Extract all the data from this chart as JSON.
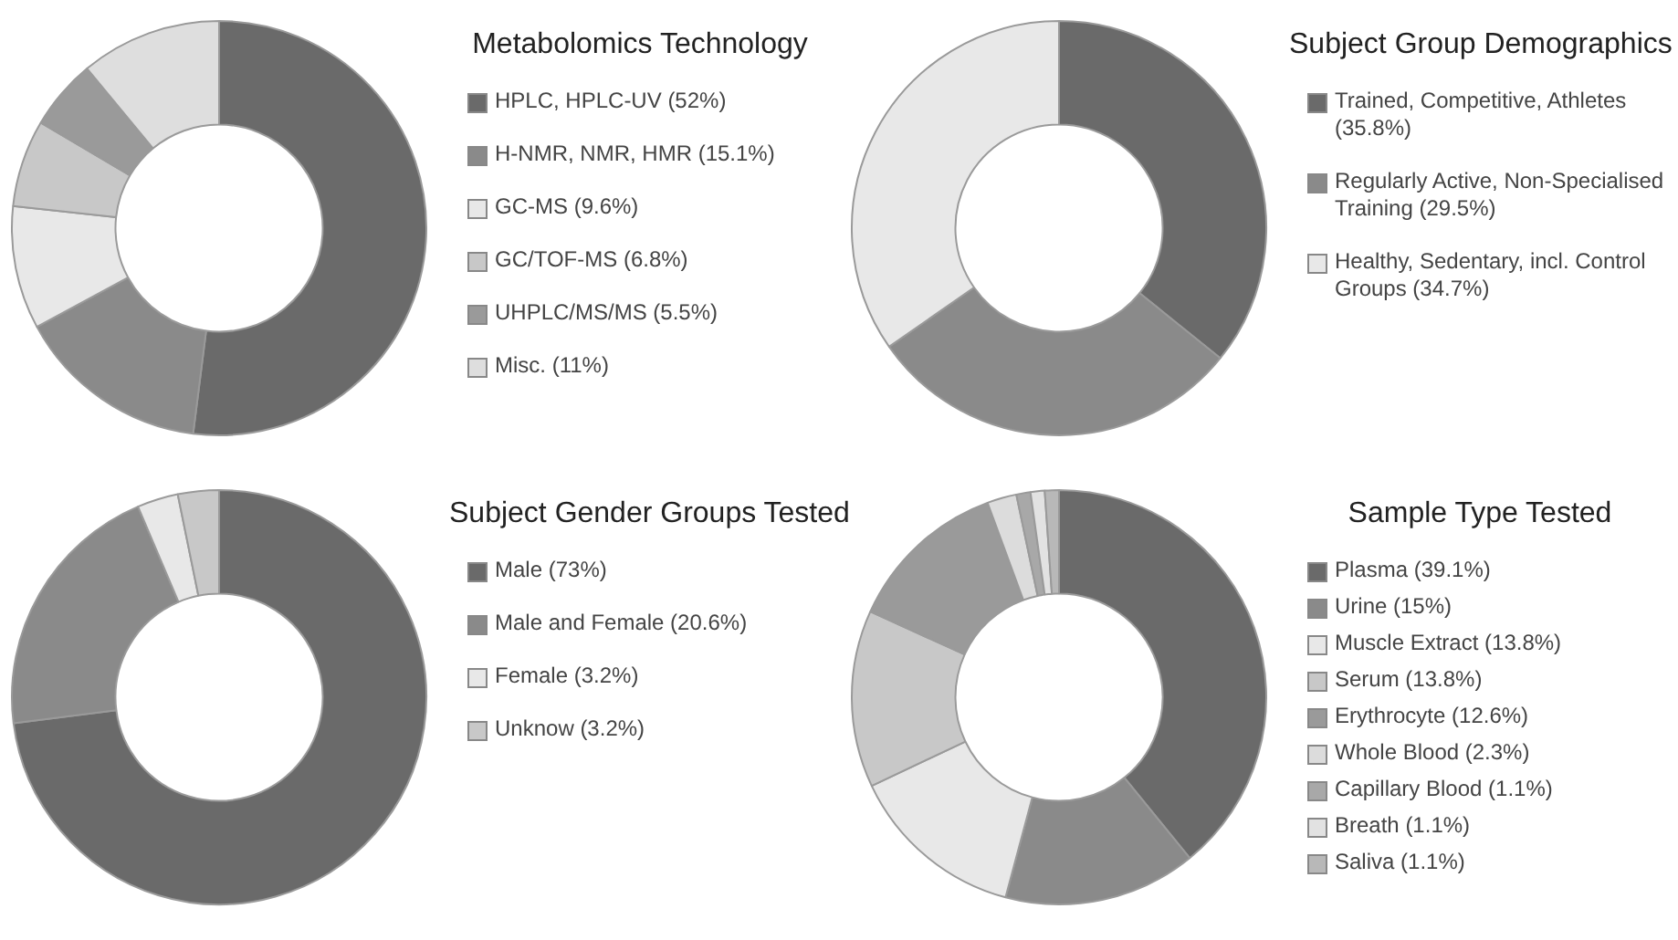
{
  "chart_data": [
    {
      "type": "donut",
      "title": "Metabolomics Technology",
      "legend": "right",
      "categories": [
        "HPLC, HPLC-UV (52%)",
        "H-NMR, NMR, HMR (15.1%)",
        "GC-MS (9.6%)",
        "GC/TOF-MS (6.8%)",
        "UHPLC/MS/MS (5.5%)",
        "Misc. (11%)"
      ],
      "values": [
        52,
        15.1,
        9.6,
        6.8,
        5.5,
        11
      ],
      "colors": [
        "#6a6a6a",
        "#8a8a8a",
        "#e8e8e8",
        "#c8c8c8",
        "#9a9a9a",
        "#dedede"
      ]
    },
    {
      "type": "donut",
      "title": "Subject Group Demographics",
      "legend": "right",
      "categories": [
        "Trained, Competitive, Athletes (35.8%)",
        "Regularly Active, Non-Specialised Training (29.5%)",
        "Healthy, Sedentary, incl. Control Groups (34.7%)"
      ],
      "values": [
        35.8,
        29.5,
        34.7
      ],
      "colors": [
        "#6a6a6a",
        "#8a8a8a",
        "#e8e8e8"
      ]
    },
    {
      "type": "donut",
      "title": "Subject Gender Groups Tested",
      "legend": "right",
      "categories": [
        "Male (73%)",
        "Male and Female (20.6%)",
        "Female (3.2%)",
        "Unknow (3.2%)"
      ],
      "values": [
        73,
        20.6,
        3.2,
        3.2
      ],
      "colors": [
        "#6a6a6a",
        "#8a8a8a",
        "#e8e8e8",
        "#c8c8c8"
      ]
    },
    {
      "type": "donut",
      "title": "Sample Type Tested",
      "legend": "right",
      "categories": [
        "Plasma (39.1%)",
        "Urine (15%)",
        "Muscle Extract (13.8%)",
        "Serum (13.8%)",
        "Erythrocyte (12.6%)",
        "Whole Blood (2.3%)",
        "Capillary Blood (1.1%)",
        "Breath (1.1%)",
        "Saliva (1.1%)"
      ],
      "values": [
        39.1,
        15,
        13.8,
        13.8,
        12.6,
        2.3,
        1.1,
        1.1,
        1.1
      ],
      "colors": [
        "#6a6a6a",
        "#8a8a8a",
        "#e8e8e8",
        "#c8c8c8",
        "#9a9a9a",
        "#dcdcdc",
        "#a8a8a8",
        "#e2e2e2",
        "#b8b8b8"
      ]
    }
  ]
}
